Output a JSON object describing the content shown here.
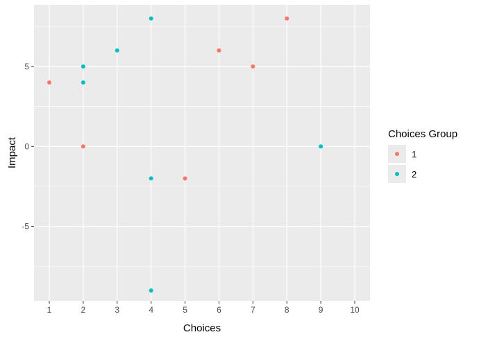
{
  "chart_data": {
    "type": "scatter",
    "xlabel": "Choices",
    "ylabel": "Impact",
    "xlim": [
      0.55,
      10.45
    ],
    "ylim": [
      -9.65,
      8.85
    ],
    "x_ticks": [
      1,
      2,
      3,
      4,
      5,
      6,
      7,
      8,
      9,
      10
    ],
    "y_ticks": [
      -5,
      0,
      5
    ],
    "y_minor_ticks": [
      -7.5,
      -2.5,
      2.5,
      7.5
    ],
    "grid": true,
    "background": "#ebebeb",
    "legend": {
      "title": "Choices Group",
      "placement": "right"
    },
    "series": [
      {
        "name": "1",
        "color": "#f8766d",
        "points": [
          {
            "x": 1,
            "y": 4
          },
          {
            "x": 2,
            "y": 0
          },
          {
            "x": 5,
            "y": -2
          },
          {
            "x": 6,
            "y": 6
          },
          {
            "x": 7,
            "y": 5
          },
          {
            "x": 8,
            "y": 8
          }
        ]
      },
      {
        "name": "2",
        "color": "#00bfc4",
        "points": [
          {
            "x": 2,
            "y": 5
          },
          {
            "x": 2,
            "y": 4
          },
          {
            "x": 3,
            "y": 6
          },
          {
            "x": 4,
            "y": 8
          },
          {
            "x": 4,
            "y": -2
          },
          {
            "x": 4,
            "y": -9
          },
          {
            "x": 9,
            "y": 0
          }
        ]
      }
    ]
  }
}
